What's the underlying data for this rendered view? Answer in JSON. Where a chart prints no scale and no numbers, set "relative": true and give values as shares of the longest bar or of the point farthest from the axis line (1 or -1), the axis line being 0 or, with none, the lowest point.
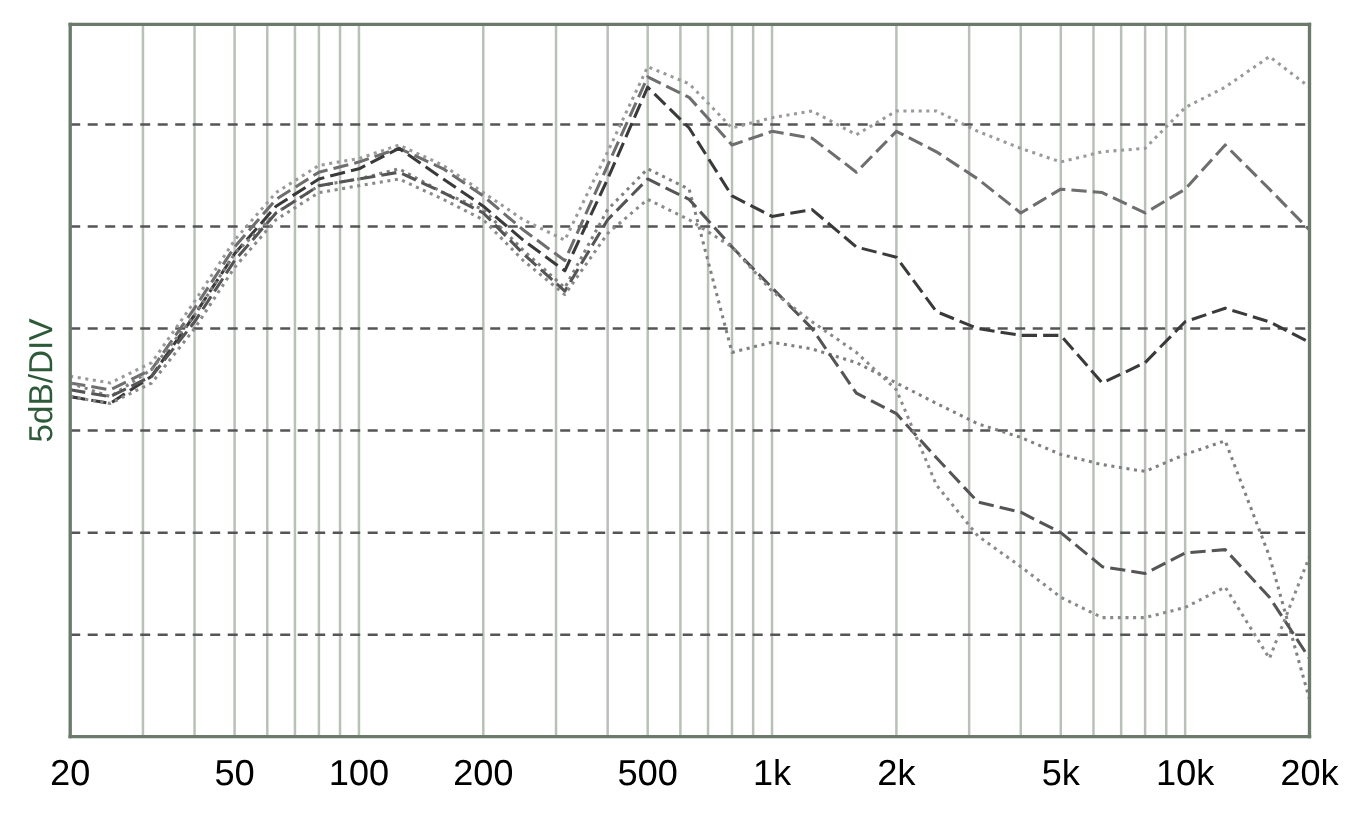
{
  "chart_data": {
    "type": "line",
    "relative": true,
    "ylabel": "5dB/DIV",
    "log": "x",
    "xlim": [
      20,
      20000
    ],
    "xticks": [
      20,
      50,
      100,
      200,
      500,
      {
        "value": 1000,
        "label": "1k"
      },
      {
        "value": 2000,
        "label": "2k"
      },
      {
        "value": 5000,
        "label": "5k"
      },
      {
        "value": 10000,
        "label": "10k"
      },
      {
        "value": 20000,
        "label": "20k"
      }
    ],
    "x": [
      20,
      25,
      31.5,
      40,
      50,
      63,
      80,
      100,
      125,
      160,
      200,
      250,
      315,
      400,
      500,
      630,
      800,
      1000,
      1250,
      1600,
      2000,
      2500,
      3150,
      4000,
      5000,
      6300,
      8000,
      10000,
      12500,
      16000,
      20000
    ],
    "grid": true,
    "legend": false,
    "marker": "none",
    "series": [
      {
        "color": "#9a9a9a",
        "line_style": "dotted",
        "values": [
          0.53,
          0.52,
          0.55,
          0.64,
          0.73,
          0.8,
          0.84,
          0.85,
          0.87,
          0.84,
          0.8,
          0.76,
          0.73,
          0.86,
          0.985,
          0.96,
          0.895,
          0.91,
          0.92,
          0.885,
          0.92,
          0.92,
          0.89,
          0.865,
          0.845,
          0.86,
          0.865,
          0.925,
          0.955,
          1,
          0.955
        ]
      },
      {
        "color": "#6e6e6e",
        "line_style": "dashed",
        "values": [
          0.52,
          0.51,
          0.54,
          0.63,
          0.72,
          0.79,
          0.83,
          0.845,
          0.865,
          0.835,
          0.795,
          0.745,
          0.7,
          0.84,
          0.97,
          0.94,
          0.87,
          0.89,
          0.88,
          0.83,
          0.89,
          0.86,
          0.82,
          0.77,
          0.805,
          0.8,
          0.77,
          0.805,
          0.87,
          0.805,
          0.745
        ]
      },
      {
        "color": "#3a3a3a",
        "line_style": "dashed",
        "values": [
          0.5,
          0.49,
          0.53,
          0.62,
          0.71,
          0.78,
          0.82,
          0.835,
          0.865,
          0.82,
          0.78,
          0.73,
          0.685,
          0.82,
          0.955,
          0.895,
          0.795,
          0.765,
          0.775,
          0.72,
          0.705,
          0.625,
          0.6,
          0.59,
          0.59,
          0.52,
          0.55,
          0.61,
          0.63,
          0.61,
          0.58
        ]
      },
      {
        "color": "#808080",
        "line_style": "dotted",
        "values": [
          0.52,
          0.5,
          0.54,
          0.62,
          0.71,
          0.77,
          0.81,
          0.82,
          0.835,
          0.8,
          0.775,
          0.715,
          0.66,
          0.775,
          0.835,
          0.805,
          0.565,
          0.58,
          0.57,
          0.55,
          0.52,
          0.49,
          0.46,
          0.44,
          0.415,
          0.4,
          0.39,
          0.415,
          0.435,
          0.265,
          0.055
        ]
      },
      {
        "color": "#555555",
        "line_style": "dashed",
        "values": [
          0.51,
          0.5,
          0.53,
          0.61,
          0.7,
          0.77,
          0.81,
          0.82,
          0.83,
          0.8,
          0.77,
          0.71,
          0.655,
          0.76,
          0.82,
          0.79,
          0.72,
          0.66,
          0.6,
          0.505,
          0.475,
          0.41,
          0.345,
          0.33,
          0.3,
          0.25,
          0.24,
          0.27,
          0.275,
          0.205,
          0.115
        ]
      },
      {
        "color": "#8a8a8a",
        "line_style": "dotted",
        "values": [
          0.5,
          0.49,
          0.52,
          0.6,
          0.69,
          0.76,
          0.8,
          0.81,
          0.82,
          0.79,
          0.76,
          0.7,
          0.65,
          0.74,
          0.79,
          0.76,
          0.72,
          0.655,
          0.61,
          0.565,
          0.51,
          0.37,
          0.295,
          0.25,
          0.205,
          0.175,
          0.175,
          0.19,
          0.22,
          0.115,
          0.265
        ]
      }
    ]
  }
}
